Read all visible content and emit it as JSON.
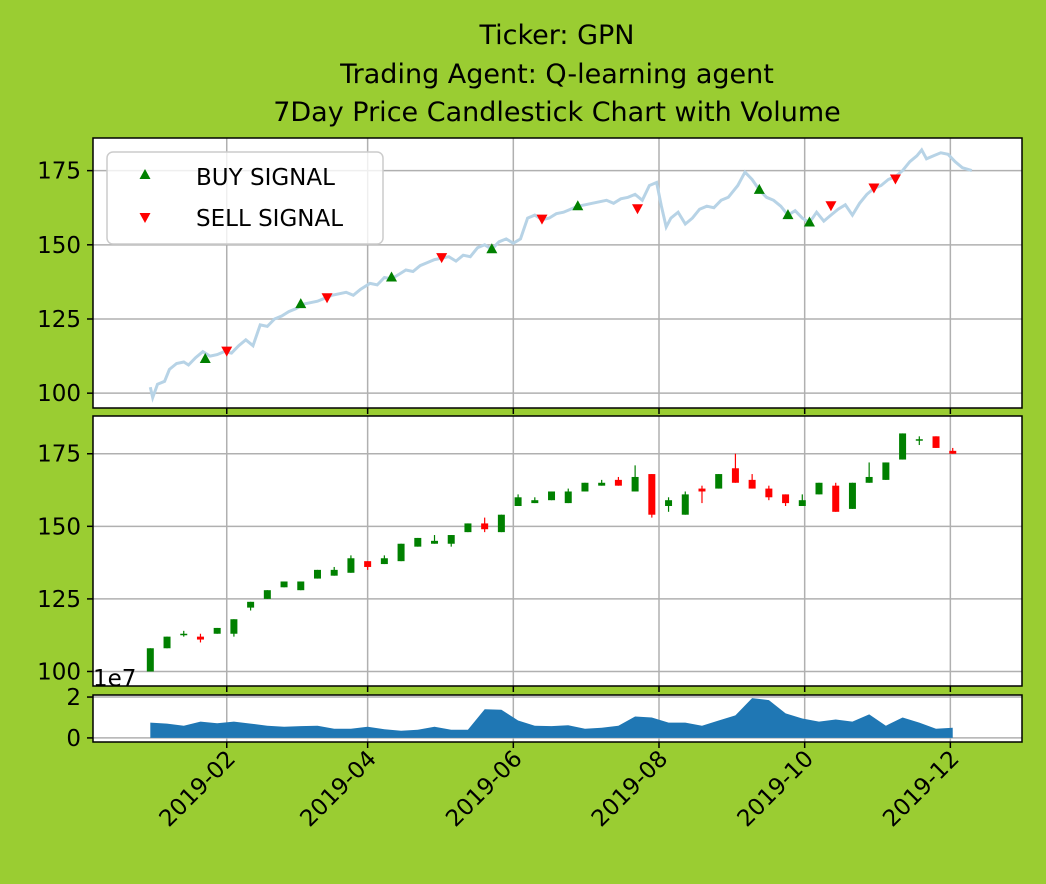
{
  "title_lines": [
    "Ticker: GPN",
    "Trading Agent: Q-learning agent",
    "7Day Price Candlestick Chart with Volume"
  ],
  "colors": {
    "background": "#9acd32",
    "line": "#b7d3e6",
    "up": "#008000",
    "down": "#ff0000",
    "volume": "#1f77b4",
    "grid": "#b0b0b0"
  },
  "legend": {
    "buy_label": "BUY SIGNAL",
    "sell_label": "SELL SIGNAL",
    "placement": "upper-left"
  },
  "volume_offset_label": "1e7",
  "chart_data": [
    {
      "type": "line",
      "name": "price_signals",
      "y_ticks": [
        "100",
        "125",
        "150",
        "175"
      ],
      "ylim": [
        95,
        186
      ],
      "grid": true,
      "price": [
        [
          "2018-12-31",
          102
        ],
        [
          "2019-01-01",
          98.5
        ],
        [
          "2019-01-03",
          103
        ],
        [
          "2019-01-06",
          104
        ],
        [
          "2019-01-08",
          108
        ],
        [
          "2019-01-11",
          110
        ],
        [
          "2019-01-14",
          110.5
        ],
        [
          "2019-01-16",
          109.5
        ],
        [
          "2019-01-19",
          112
        ],
        [
          "2019-01-22",
          114
        ],
        [
          "2019-01-25",
          112.5
        ],
        [
          "2019-01-28",
          113
        ],
        [
          "2019-01-31",
          114
        ],
        [
          "2019-02-03",
          113.5
        ],
        [
          "2019-02-06",
          116
        ],
        [
          "2019-02-09",
          118
        ],
        [
          "2019-02-12",
          116
        ],
        [
          "2019-02-15",
          123
        ],
        [
          "2019-02-18",
          122.5
        ],
        [
          "2019-02-21",
          125
        ],
        [
          "2019-02-24",
          126
        ],
        [
          "2019-02-27",
          127.5
        ],
        [
          "2019-03-02",
          128.5
        ],
        [
          "2019-03-05",
          130
        ],
        [
          "2019-03-08",
          130.5
        ],
        [
          "2019-03-11",
          131
        ],
        [
          "2019-03-14",
          132
        ],
        [
          "2019-03-17",
          133
        ],
        [
          "2019-03-20",
          133.5
        ],
        [
          "2019-03-23",
          134
        ],
        [
          "2019-03-26",
          133
        ],
        [
          "2019-03-29",
          135
        ],
        [
          "2019-04-02",
          137
        ],
        [
          "2019-04-05",
          136.5
        ],
        [
          "2019-04-08",
          139
        ],
        [
          "2019-04-11",
          138.5
        ],
        [
          "2019-04-14",
          140
        ],
        [
          "2019-04-17",
          141.5
        ],
        [
          "2019-04-20",
          141
        ],
        [
          "2019-04-23",
          143
        ],
        [
          "2019-04-26",
          144
        ],
        [
          "2019-04-29",
          145
        ],
        [
          "2019-05-02",
          145.5
        ],
        [
          "2019-05-05",
          146
        ],
        [
          "2019-05-08",
          144.5
        ],
        [
          "2019-05-11",
          146.5
        ],
        [
          "2019-05-14",
          146
        ],
        [
          "2019-05-17",
          149
        ],
        [
          "2019-05-20",
          150
        ],
        [
          "2019-05-23",
          148.5
        ],
        [
          "2019-05-26",
          151
        ],
        [
          "2019-05-29",
          152
        ],
        [
          "2019-06-01",
          150.5
        ],
        [
          "2019-06-04",
          152
        ],
        [
          "2019-06-07",
          159
        ],
        [
          "2019-06-10",
          160
        ],
        [
          "2019-06-13",
          158.5
        ],
        [
          "2019-06-16",
          159
        ],
        [
          "2019-06-19",
          160.5
        ],
        [
          "2019-06-22",
          161
        ],
        [
          "2019-06-25",
          162
        ],
        [
          "2019-06-28",
          163
        ],
        [
          "2019-07-01",
          163.5
        ],
        [
          "2019-07-04",
          164
        ],
        [
          "2019-07-07",
          164.5
        ],
        [
          "2019-07-10",
          165
        ],
        [
          "2019-07-13",
          164
        ],
        [
          "2019-07-16",
          165.5
        ],
        [
          "2019-07-19",
          166
        ],
        [
          "2019-07-22",
          167
        ],
        [
          "2019-07-25",
          165
        ],
        [
          "2019-07-28",
          170
        ],
        [
          "2019-07-31",
          171
        ],
        [
          "2019-08-02",
          163
        ],
        [
          "2019-08-04",
          156
        ],
        [
          "2019-08-06",
          159
        ],
        [
          "2019-08-09",
          161
        ],
        [
          "2019-08-12",
          157
        ],
        [
          "2019-08-15",
          159
        ],
        [
          "2019-08-18",
          162
        ],
        [
          "2019-08-21",
          163
        ],
        [
          "2019-08-24",
          162.5
        ],
        [
          "2019-08-27",
          165
        ],
        [
          "2019-08-30",
          166
        ],
        [
          "2019-09-03",
          170
        ],
        [
          "2019-09-06",
          174.5
        ],
        [
          "2019-09-09",
          172
        ],
        [
          "2019-09-12",
          168.5
        ],
        [
          "2019-09-15",
          166
        ],
        [
          "2019-09-18",
          165
        ],
        [
          "2019-09-21",
          163
        ],
        [
          "2019-09-24",
          160
        ],
        [
          "2019-09-27",
          161.5
        ],
        [
          "2019-09-30",
          159
        ],
        [
          "2019-10-03",
          157.5
        ],
        [
          "2019-10-06",
          161
        ],
        [
          "2019-10-09",
          158
        ],
        [
          "2019-10-12",
          160
        ],
        [
          "2019-10-15",
          162
        ],
        [
          "2019-10-18",
          163.5
        ],
        [
          "2019-10-21",
          160
        ],
        [
          "2019-10-24",
          164
        ],
        [
          "2019-10-27",
          167
        ],
        [
          "2019-10-30",
          169
        ],
        [
          "2019-11-02",
          170
        ],
        [
          "2019-11-05",
          172
        ],
        [
          "2019-11-08",
          173
        ],
        [
          "2019-11-11",
          175
        ],
        [
          "2019-11-14",
          178
        ],
        [
          "2019-11-17",
          180
        ],
        [
          "2019-11-19",
          182
        ],
        [
          "2019-11-21",
          179
        ],
        [
          "2019-11-24",
          180
        ],
        [
          "2019-11-27",
          181
        ],
        [
          "2019-11-30",
          180.5
        ],
        [
          "2019-12-03",
          178
        ],
        [
          "2019-12-06",
          176
        ],
        [
          "2019-12-10",
          175
        ]
      ],
      "buy_signals": [
        [
          "2019-01-23",
          111.5
        ],
        [
          "2019-03-04",
          130
        ],
        [
          "2019-04-11",
          139
        ],
        [
          "2019-05-23",
          148.5
        ],
        [
          "2019-06-28",
          163
        ],
        [
          "2019-09-12",
          168.5
        ],
        [
          "2019-09-24",
          160
        ],
        [
          "2019-10-03",
          157.5
        ]
      ],
      "sell_signals": [
        [
          "2019-02-01",
          114
        ],
        [
          "2019-03-15",
          132
        ],
        [
          "2019-05-02",
          145.5
        ],
        [
          "2019-06-13",
          158.5
        ],
        [
          "2019-07-23",
          162
        ],
        [
          "2019-10-12",
          163
        ],
        [
          "2019-10-30",
          169
        ],
        [
          "2019-11-08",
          172
        ]
      ]
    },
    {
      "type": "candlestick",
      "name": "candles",
      "y_ticks": [
        "100",
        "125",
        "150",
        "175"
      ],
      "ylim": [
        95,
        188
      ],
      "grid": true,
      "candles": [
        [
          "2018-12-31",
          100,
          108,
          100,
          108
        ],
        [
          "2019-01-07",
          108,
          112,
          108,
          112
        ],
        [
          "2019-01-14",
          113,
          114,
          112,
          113
        ],
        [
          "2019-01-21",
          112,
          113,
          110,
          111
        ],
        [
          "2019-01-28",
          113,
          115,
          113,
          115
        ],
        [
          "2019-02-04",
          113,
          118,
          112,
          118
        ],
        [
          "2019-02-11",
          122,
          124,
          121,
          124
        ],
        [
          "2019-02-18",
          125,
          128,
          125,
          128
        ],
        [
          "2019-02-25",
          129,
          131,
          129,
          131
        ],
        [
          "2019-03-04",
          128,
          131,
          128,
          131
        ],
        [
          "2019-03-11",
          132,
          135,
          132,
          135
        ],
        [
          "2019-03-18",
          133,
          136,
          133,
          135
        ],
        [
          "2019-03-25",
          134,
          140,
          134,
          139
        ],
        [
          "2019-04-01",
          138,
          138,
          135,
          136
        ],
        [
          "2019-04-08",
          137,
          140,
          137,
          139
        ],
        [
          "2019-04-15",
          138,
          144,
          138,
          144
        ],
        [
          "2019-04-22",
          143,
          146,
          143,
          146
        ],
        [
          "2019-04-29",
          144,
          147,
          144,
          145
        ],
        [
          "2019-05-06",
          144,
          147,
          143,
          147
        ],
        [
          "2019-05-13",
          148,
          151,
          148,
          151
        ],
        [
          "2019-05-20",
          151,
          153,
          148,
          149
        ],
        [
          "2019-05-27",
          148,
          154,
          148,
          154
        ],
        [
          "2019-06-03",
          157,
          161,
          157,
          160
        ],
        [
          "2019-06-10",
          158,
          160,
          158,
          159
        ],
        [
          "2019-06-17",
          159,
          162,
          159,
          162
        ],
        [
          "2019-06-24",
          158,
          163,
          158,
          162
        ],
        [
          "2019-07-01",
          162,
          165,
          162,
          165
        ],
        [
          "2019-07-08",
          164,
          166,
          164,
          165
        ],
        [
          "2019-07-15",
          166,
          167,
          164,
          164
        ],
        [
          "2019-07-22",
          162,
          171,
          162,
          167
        ],
        [
          "2019-07-29",
          168,
          168,
          153,
          154
        ],
        [
          "2019-08-05",
          157,
          160,
          155,
          159
        ],
        [
          "2019-08-12",
          154,
          162,
          154,
          161
        ],
        [
          "2019-08-19",
          163,
          164,
          158,
          162
        ],
        [
          "2019-08-26",
          163,
          168,
          163,
          168
        ],
        [
          "2019-09-02",
          170,
          175,
          165,
          165
        ],
        [
          "2019-09-09",
          166,
          168,
          163,
          163
        ],
        [
          "2019-09-16",
          163,
          164,
          159,
          160
        ],
        [
          "2019-09-23",
          161,
          161,
          157,
          158
        ],
        [
          "2019-09-30",
          157,
          161,
          157,
          159
        ],
        [
          "2019-10-07",
          161,
          165,
          161,
          165
        ],
        [
          "2019-10-14",
          164,
          165,
          155,
          155
        ],
        [
          "2019-10-21",
          156,
          165,
          156,
          165
        ],
        [
          "2019-10-28",
          165,
          172,
          165,
          167
        ],
        [
          "2019-11-04",
          166,
          172,
          166,
          172
        ],
        [
          "2019-11-11",
          173,
          182,
          173,
          182
        ],
        [
          "2019-11-18",
          180,
          181,
          178,
          180
        ],
        [
          "2019-11-25",
          181,
          181,
          177,
          177
        ],
        [
          "2019-12-02",
          176,
          177,
          175,
          175
        ]
      ]
    },
    {
      "type": "area",
      "name": "volume",
      "y_ticks": [
        "0",
        "2"
      ],
      "ylim": [
        -0.2,
        2.1
      ],
      "unit_scale": "1e7",
      "grid": true,
      "values": [
        [
          "2018-12-31",
          0.75
        ],
        [
          "2019-01-07",
          0.7
        ],
        [
          "2019-01-14",
          0.6
        ],
        [
          "2019-01-21",
          0.8
        ],
        [
          "2019-01-28",
          0.72
        ],
        [
          "2019-02-04",
          0.8
        ],
        [
          "2019-02-11",
          0.7
        ],
        [
          "2019-02-18",
          0.6
        ],
        [
          "2019-02-25",
          0.55
        ],
        [
          "2019-03-04",
          0.58
        ],
        [
          "2019-03-11",
          0.6
        ],
        [
          "2019-03-18",
          0.45
        ],
        [
          "2019-03-25",
          0.45
        ],
        [
          "2019-04-01",
          0.55
        ],
        [
          "2019-04-08",
          0.42
        ],
        [
          "2019-04-15",
          0.35
        ],
        [
          "2019-04-22",
          0.4
        ],
        [
          "2019-04-29",
          0.55
        ],
        [
          "2019-05-06",
          0.4
        ],
        [
          "2019-05-13",
          0.4
        ],
        [
          "2019-05-20",
          1.4
        ],
        [
          "2019-05-27",
          1.38
        ],
        [
          "2019-06-03",
          0.85
        ],
        [
          "2019-06-10",
          0.6
        ],
        [
          "2019-06-17",
          0.58
        ],
        [
          "2019-06-24",
          0.62
        ],
        [
          "2019-07-01",
          0.45
        ],
        [
          "2019-07-08",
          0.5
        ],
        [
          "2019-07-15",
          0.6
        ],
        [
          "2019-07-22",
          1.05
        ],
        [
          "2019-07-29",
          1.0
        ],
        [
          "2019-08-05",
          0.75
        ],
        [
          "2019-08-12",
          0.75
        ],
        [
          "2019-08-19",
          0.6
        ],
        [
          "2019-08-26",
          0.85
        ],
        [
          "2019-09-02",
          1.1
        ],
        [
          "2019-09-09",
          1.95
        ],
        [
          "2019-09-16",
          1.85
        ],
        [
          "2019-09-23",
          1.2
        ],
        [
          "2019-09-30",
          0.95
        ],
        [
          "2019-10-07",
          0.8
        ],
        [
          "2019-10-14",
          0.9
        ],
        [
          "2019-10-21",
          0.8
        ],
        [
          "2019-10-28",
          1.15
        ],
        [
          "2019-11-04",
          0.6
        ],
        [
          "2019-11-11",
          1.0
        ],
        [
          "2019-11-18",
          0.75
        ],
        [
          "2019-11-25",
          0.45
        ],
        [
          "2019-12-02",
          0.5
        ]
      ]
    }
  ],
  "x_ticks": [
    "2019-02",
    "2019-04",
    "2019-06",
    "2019-08",
    "2019-10",
    "2019-12"
  ]
}
